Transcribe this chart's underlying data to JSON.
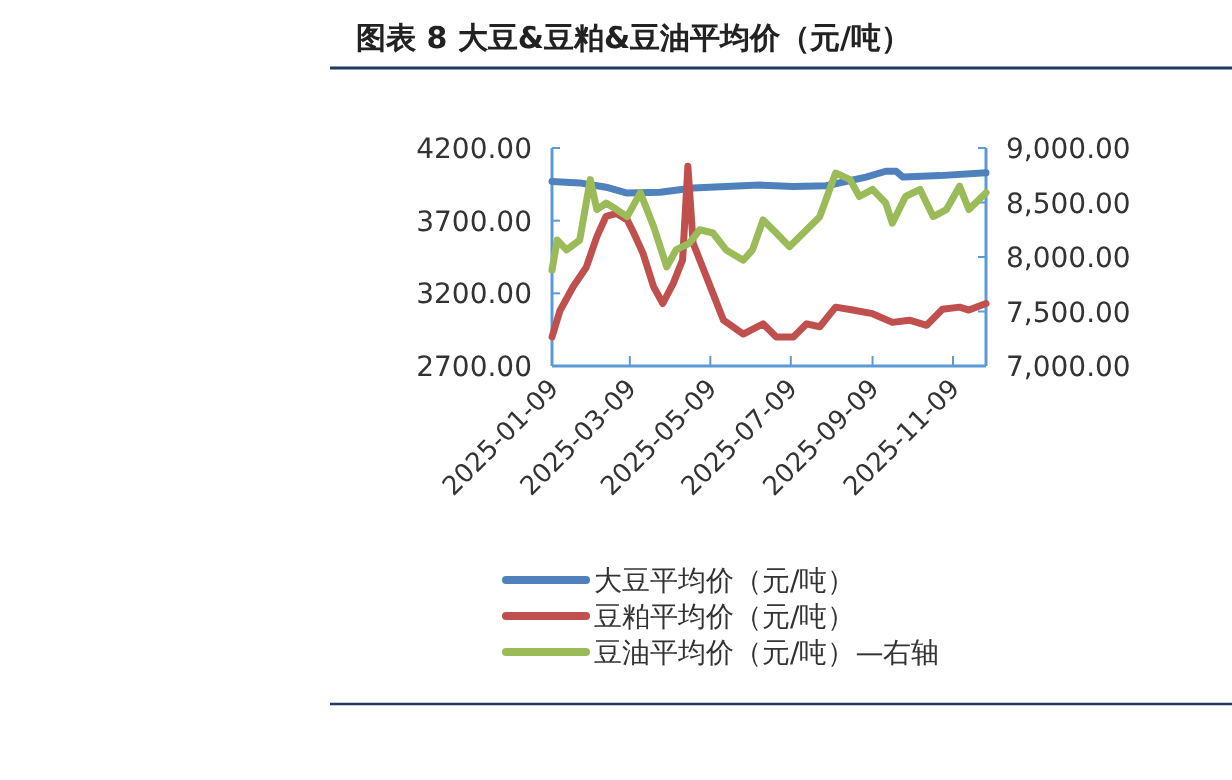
{
  "chart_data": {
    "type": "line",
    "title": "图表 8 大豆&豆粕&豆油平均价（元/吨）",
    "xlim": [
      "2025-01-09",
      "2025-12-04"
    ],
    "xticks": [
      "2025-01-09",
      "2025-03-09",
      "2025-05-09",
      "2025-07-09",
      "2025-09-09",
      "2025-11-09"
    ],
    "ylim": [
      2700,
      4200
    ],
    "yticks": [
      {
        "value": 2700,
        "label": "2700.00"
      },
      {
        "value": 3200,
        "label": "3200.00"
      },
      {
        "value": 3700,
        "label": "3700.00"
      },
      {
        "value": 4200,
        "label": "4200.00"
      }
    ],
    "y2lim": [
      7000,
      9000
    ],
    "y2ticks": [
      {
        "value": 7000,
        "label": "7,000.00"
      },
      {
        "value": 7500,
        "label": "7,500.00"
      },
      {
        "value": 8000,
        "label": "8,000.00"
      },
      {
        "value": 8500,
        "label": "8,500.00"
      },
      {
        "value": 9000,
        "label": "9,000.00"
      }
    ],
    "legend": "bottom",
    "grid": false,
    "marker": "none",
    "line_style": "solid",
    "series": [
      {
        "name": "大豆平均价（元/吨）",
        "color": "#4f81bd",
        "x": [
          "2025-01-09",
          "2025-01-30",
          "2025-02-19",
          "2025-03-07",
          "2025-04-01",
          "2025-04-26",
          "2025-06-15",
          "2025-07-11",
          "2025-08-05",
          "2025-09-04",
          "2025-09-19",
          "2025-09-27",
          "2025-10-02",
          "2025-10-30",
          "2025-12-04"
        ],
        "values": [
          3970,
          3960,
          3930,
          3890,
          3895,
          3925,
          3945,
          3935,
          3940,
          4000,
          4040,
          4040,
          4000,
          4010,
          4030
        ]
      },
      {
        "name": "豆粕平均价（元/吨）",
        "color": "#c0504d",
        "x": [
          "2025-01-09",
          "2025-01-15",
          "2025-01-25",
          "2025-02-04",
          "2025-02-12",
          "2025-02-19",
          "2025-02-27",
          "2025-03-07",
          "2025-03-12",
          "2025-03-19",
          "2025-03-27",
          "2025-04-03",
          "2025-04-11",
          "2025-04-18",
          "2025-04-22",
          "2025-04-26",
          "2025-05-06",
          "2025-05-19",
          "2025-06-03",
          "2025-06-18",
          "2025-06-28",
          "2025-07-11",
          "2025-07-21",
          "2025-07-31",
          "2025-08-12",
          "2025-08-25",
          "2025-09-09",
          "2025-09-24",
          "2025-10-07",
          "2025-10-20",
          "2025-11-01",
          "2025-11-14",
          "2025-11-21",
          "2025-12-04"
        ],
        "values": [
          2900,
          3080,
          3245,
          3380,
          3590,
          3730,
          3750,
          3705,
          3615,
          3475,
          3245,
          3130,
          3270,
          3430,
          4075,
          3545,
          3315,
          3015,
          2920,
          2990,
          2900,
          2900,
          2990,
          2970,
          3105,
          3085,
          3060,
          3000,
          3015,
          2980,
          3090,
          3105,
          3085,
          3130
        ]
      },
      {
        "name": "豆油平均价（元/吨）—右轴",
        "color": "#9bbb59",
        "axis": "y2",
        "x": [
          "2025-01-09",
          "2025-01-13",
          "2025-01-20",
          "2025-01-30",
          "2025-02-07",
          "2025-02-12",
          "2025-02-19",
          "2025-02-27",
          "2025-03-07",
          "2025-03-17",
          "2025-03-27",
          "2025-04-06",
          "2025-04-13",
          "2025-04-23",
          "2025-05-01",
          "2025-05-11",
          "2025-05-21",
          "2025-06-03",
          "2025-06-10",
          "2025-06-18",
          "2025-06-28",
          "2025-07-08",
          "2025-07-21",
          "2025-07-31",
          "2025-08-12",
          "2025-08-23",
          "2025-08-30",
          "2025-09-09",
          "2025-09-19",
          "2025-09-24",
          "2025-10-04",
          "2025-10-15",
          "2025-10-25",
          "2025-11-04",
          "2025-11-14",
          "2025-11-21",
          "2025-12-04"
        ],
        "values": [
          7880,
          8155,
          8065,
          8155,
          8710,
          8435,
          8495,
          8435,
          8370,
          8590,
          8280,
          7910,
          8065,
          8125,
          8250,
          8220,
          8065,
          7970,
          8065,
          8340,
          8220,
          8095,
          8250,
          8370,
          8770,
          8710,
          8555,
          8620,
          8495,
          8310,
          8555,
          8620,
          8370,
          8435,
          8650,
          8435,
          8590
        ]
      }
    ]
  }
}
